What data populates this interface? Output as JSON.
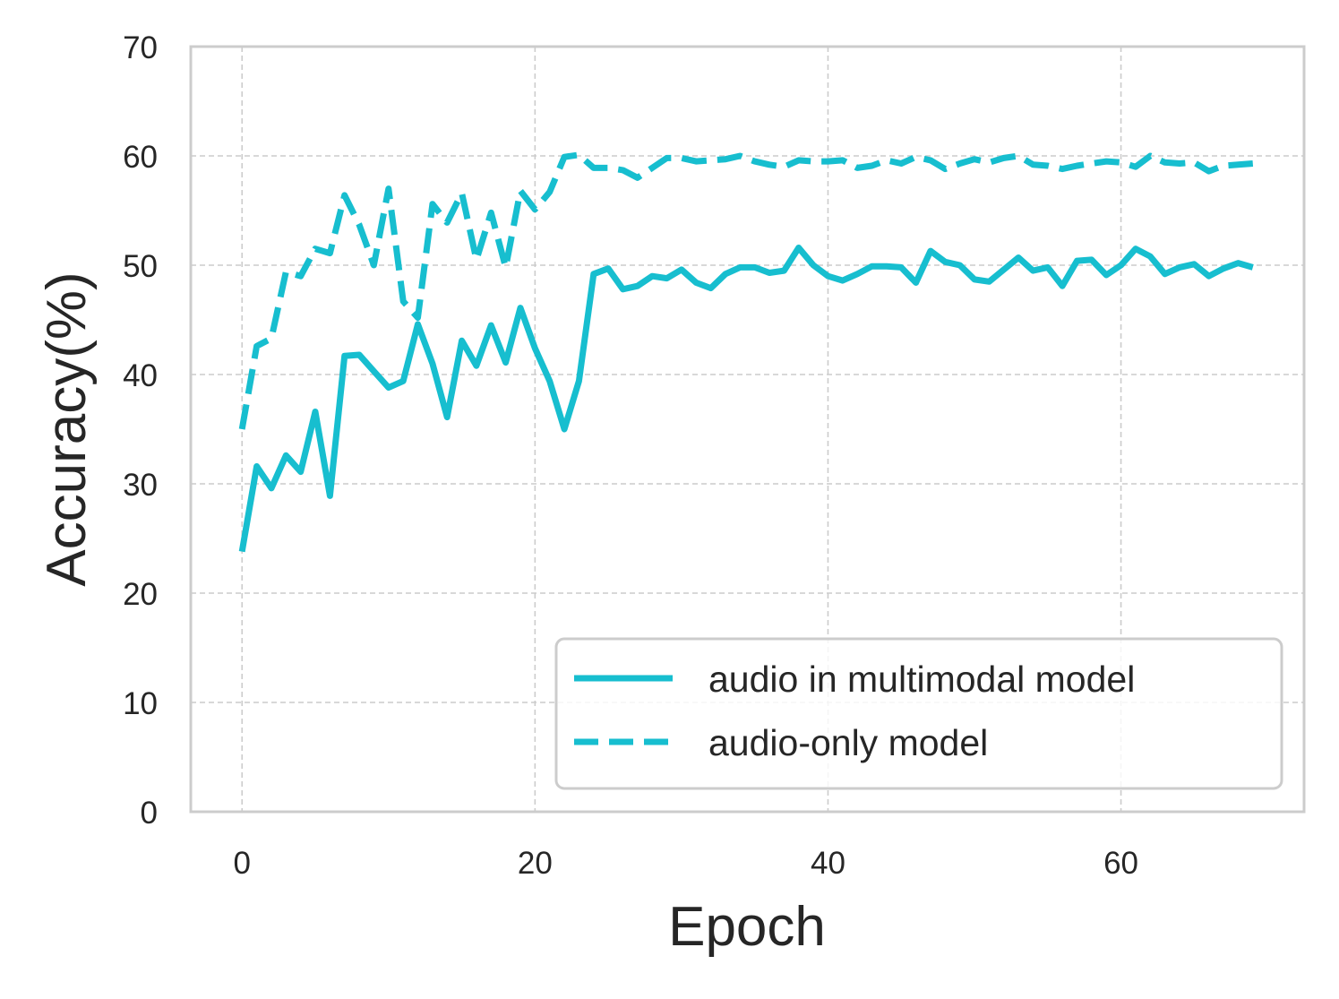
{
  "chart_data": {
    "type": "line",
    "title": "",
    "xlabel": "Epoch",
    "ylabel": "Accuracy(%)",
    "xlim": [
      -3.5,
      72.5
    ],
    "ylim": [
      0,
      70
    ],
    "xticks": [
      0,
      20,
      40,
      60
    ],
    "yticks": [
      0,
      10,
      20,
      30,
      40,
      50,
      60,
      70
    ],
    "grid": true,
    "legend_position": "lower-right",
    "colors": {
      "series": "#17becf",
      "grid": "#cccccc",
      "frame": "#cccccc",
      "text": "#262626"
    },
    "series": [
      {
        "name": "audio in multimodal model",
        "style": "solid",
        "x": [
          0,
          1,
          2,
          3,
          4,
          5,
          6,
          7,
          8,
          9,
          10,
          11,
          12,
          13,
          14,
          15,
          16,
          17,
          18,
          19,
          20,
          21,
          22,
          23,
          24,
          25,
          26,
          27,
          28,
          29,
          30,
          31,
          32,
          33,
          34,
          35,
          36,
          37,
          38,
          39,
          40,
          41,
          42,
          43,
          44,
          45,
          46,
          47,
          48,
          49,
          50,
          51,
          52,
          53,
          54,
          55,
          56,
          57,
          58,
          59,
          60,
          61,
          62,
          63,
          64,
          65,
          66,
          67,
          68,
          69
        ],
        "values": [
          23.8,
          31.6,
          29.6,
          32.6,
          31.1,
          36.6,
          28.9,
          41.7,
          41.8,
          40.3,
          38.8,
          39.4,
          44.6,
          41.0,
          36.1,
          43.1,
          40.8,
          44.5,
          41.1,
          46.1,
          42.4,
          39.4,
          35.0,
          39.4,
          49.2,
          49.7,
          47.8,
          48.1,
          49.0,
          48.8,
          49.6,
          48.4,
          47.9,
          49.2,
          49.8,
          49.8,
          49.3,
          49.5,
          51.6,
          50.0,
          49.0,
          48.6,
          49.2,
          49.9,
          49.9,
          49.8,
          48.4,
          51.3,
          50.3,
          50.0,
          48.7,
          48.5,
          49.6,
          50.7,
          49.5,
          49.8,
          48.1,
          50.4,
          50.5,
          49.1,
          50.0,
          51.5,
          50.8,
          49.2,
          49.8,
          50.1,
          49.0,
          49.7,
          50.2,
          49.8
        ]
      },
      {
        "name": "audio-only model",
        "style": "dashed",
        "x": [
          0,
          1,
          2,
          3,
          4,
          5,
          6,
          7,
          8,
          9,
          10,
          11,
          12,
          13,
          14,
          15,
          16,
          17,
          18,
          19,
          20,
          21,
          22,
          23,
          24,
          25,
          26,
          27,
          28,
          29,
          30,
          31,
          32,
          33,
          34,
          35,
          36,
          37,
          38,
          39,
          40,
          41,
          42,
          43,
          44,
          45,
          46,
          47,
          48,
          49,
          50,
          51,
          52,
          53,
          54,
          55,
          56,
          57,
          58,
          59,
          60,
          61,
          62,
          63,
          64,
          65,
          66,
          67,
          68,
          69
        ],
        "values": [
          35.0,
          42.6,
          43.3,
          49.4,
          49.0,
          51.5,
          51.1,
          56.4,
          53.7,
          50.0,
          57.0,
          46.7,
          45.2,
          55.6,
          53.9,
          56.6,
          50.5,
          54.8,
          49.8,
          56.8,
          55.1,
          56.7,
          59.9,
          60.1,
          58.9,
          58.9,
          58.7,
          58.0,
          58.9,
          59.8,
          59.8,
          59.5,
          59.6,
          59.7,
          60.0,
          59.5,
          59.2,
          59.0,
          59.6,
          59.5,
          59.5,
          59.6,
          58.9,
          59.1,
          59.6,
          59.3,
          59.9,
          59.6,
          58.8,
          59.3,
          59.7,
          59.4,
          59.8,
          60.0,
          59.2,
          59.1,
          58.8,
          59.1,
          59.3,
          59.5,
          59.4,
          59.0,
          60.0,
          59.4,
          59.3,
          59.4,
          58.6,
          59.1,
          59.2,
          59.3
        ]
      }
    ]
  }
}
